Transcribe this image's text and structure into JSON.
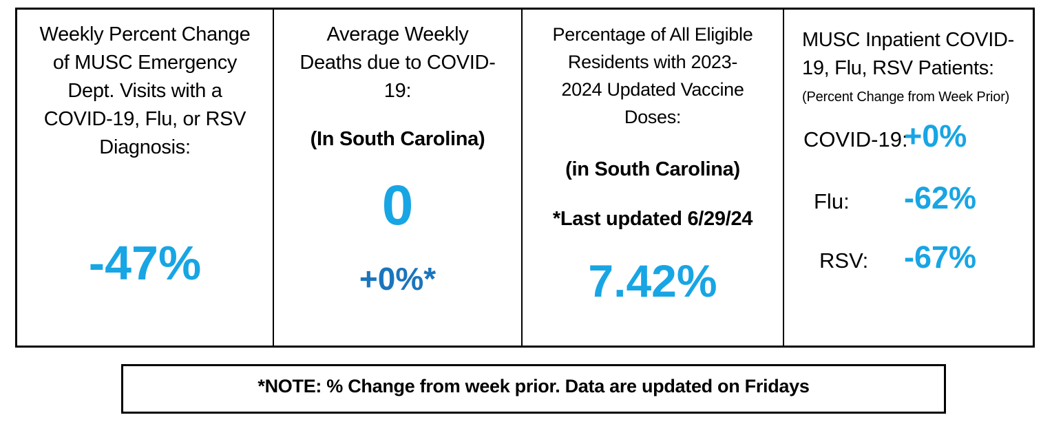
{
  "colors": {
    "value_light_blue": "#18A5E4",
    "value_dark_blue": "#1B75BC",
    "border_black": "#000000",
    "background_white": "#FFFFFF",
    "text_black": "#000000"
  },
  "panels": [
    {
      "id": "ed-visits",
      "title_lines": [
        "Weekly Percent Change",
        "of MUSC Emergency",
        "Dept. Visits with a",
        "COVID-19, Flu, or RSV",
        "Diagnosis:"
      ],
      "value": "-47%"
    },
    {
      "id": "covid-deaths",
      "title_lines": [
        "Average Weekly",
        "Deaths due to COVID-",
        "19:"
      ],
      "subtitle": "(In South Carolina)",
      "value": "0",
      "secondary_value": "+0%*"
    },
    {
      "id": "vaccine-doses",
      "title_lines": [
        "Percentage of All Eligible",
        "Residents with 2023-",
        "2024 Updated Vaccine",
        "Doses:"
      ],
      "subtitle": "(in South Carolina)",
      "updated_note": "*Last updated 6/29/24",
      "value": "7.42%"
    },
    {
      "id": "inpatient-patients",
      "title_lines": [
        "MUSC Inpatient COVID-",
        "19, Flu, RSV Patients:"
      ],
      "subtitle": "(Percent Change from Week Prior)",
      "rows": [
        {
          "label": "COVID-19:",
          "value": "+0%"
        },
        {
          "label": "Flu:",
          "value": "-62%"
        },
        {
          "label": "RSV:",
          "value": "-67%"
        }
      ]
    }
  ],
  "footer": {
    "note": "*NOTE: % Change from week prior. Data are updated on Fridays"
  }
}
